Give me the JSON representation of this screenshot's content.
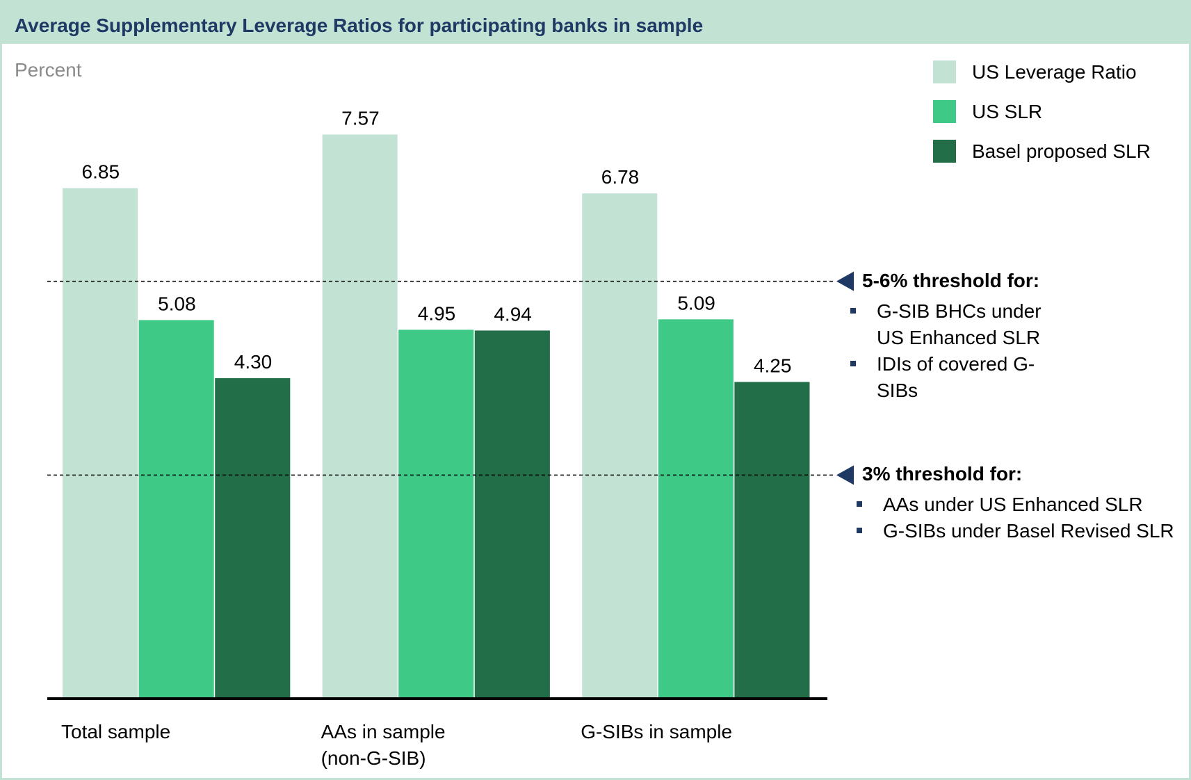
{
  "chart_data": {
    "type": "bar",
    "title": "Average Supplementary Leverage Ratios for participating banks in sample",
    "y_axis_label": "Percent",
    "categories": [
      "Total sample",
      "AAs in sample (non-G-SIB)",
      "G-SIBs in sample"
    ],
    "series": [
      {
        "name": "US Leverage Ratio",
        "color": "#c2e3d4",
        "values": [
          6.85,
          7.57,
          6.78
        ],
        "value_labels": [
          "6.85",
          "7.57",
          "6.78"
        ]
      },
      {
        "name": "US SLR",
        "color": "#3ec986",
        "values": [
          5.08,
          4.95,
          5.09
        ],
        "value_labels": [
          "5.08",
          "4.95",
          "5.09"
        ]
      },
      {
        "name": "Basel proposed SLR",
        "color": "#216e49",
        "values": [
          4.3,
          4.94,
          4.25
        ],
        "value_labels": [
          "4.30",
          "4.94",
          "4.25"
        ]
      }
    ],
    "ylim": [
      0,
      8
    ],
    "legend": "top-right",
    "annotations": [
      {
        "value": 5.6,
        "text": "5-6% threshold for:",
        "items": [
          "G-SIB BHCs under US Enhanced SLR",
          "IDIs of covered G-SIBs"
        ]
      },
      {
        "value": 3,
        "text": "3% threshold for:",
        "items": [
          "AAs under US Enhanced SLR",
          "G-SIBs under Basel Revised SLR"
        ]
      }
    ]
  }
}
